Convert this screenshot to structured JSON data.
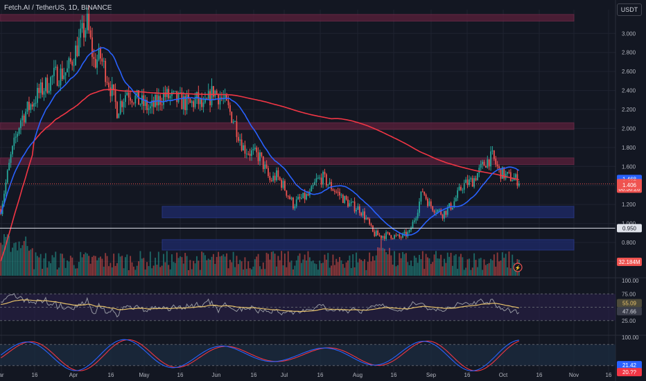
{
  "header": {
    "title": "Fetch.AI / TetherUS, 1D, BINANCE",
    "currency": "USDT"
  },
  "colors": {
    "background": "#131722",
    "up": "#26a69a",
    "down": "#ef5350",
    "ma_fast": "#2962ff",
    "ma_slow": "#f23645",
    "zone_supply": "#5b1f3a",
    "zone_demand": "#1e2a6b",
    "rsi_line": "#9598a1",
    "rsi_ma": "#e7c26a",
    "stoch_k": "#2962ff",
    "stoch_d": "#f23645"
  },
  "chart_data": [
    {
      "type": "candlestick",
      "title": "Fetch.AI / TetherUS, 1D, BINANCE",
      "ylim": [
        0.45,
        3.25
      ],
      "y_ticks": [
        "3.000",
        "2.800",
        "2.600",
        "2.400",
        "2.200",
        "2.000",
        "1.800",
        "1.600",
        "1.400",
        "1.200",
        "1.000",
        "0.800",
        "0.600"
      ],
      "x_ticks": [
        "ar",
        "16",
        "Apr",
        "16",
        "May",
        "16",
        "Jun",
        "16",
        "Jul",
        "16",
        "Aug",
        "16",
        "Sep",
        "16",
        "Oct",
        "16",
        "Nov",
        "16"
      ],
      "close_path": [
        [
          0,
          1.15
        ],
        [
          6,
          1.7
        ],
        [
          12,
          2.1
        ],
        [
          22,
          2.35
        ],
        [
          32,
          2.55
        ],
        [
          40,
          2.6
        ],
        [
          48,
          2.95
        ],
        [
          52,
          3.1
        ],
        [
          56,
          2.7
        ],
        [
          60,
          2.75
        ],
        [
          64,
          2.55
        ],
        [
          70,
          2.2
        ],
        [
          76,
          2.4
        ],
        [
          82,
          2.3
        ],
        [
          90,
          2.2
        ],
        [
          98,
          2.35
        ],
        [
          106,
          2.3
        ],
        [
          114,
          2.25
        ],
        [
          118,
          2.3
        ],
        [
          122,
          2.2
        ],
        [
          128,
          2.4
        ],
        [
          134,
          2.3
        ],
        [
          140,
          2.1
        ],
        [
          146,
          1.8
        ],
        [
          150,
          1.75
        ],
        [
          156,
          1.7
        ],
        [
          162,
          1.45
        ],
        [
          166,
          1.5
        ],
        [
          170,
          1.4
        ],
        [
          176,
          1.2
        ],
        [
          180,
          1.25
        ],
        [
          186,
          1.3
        ],
        [
          190,
          1.45
        ],
        [
          194,
          1.48
        ],
        [
          198,
          1.4
        ],
        [
          204,
          1.3
        ],
        [
          210,
          1.2
        ],
        [
          216,
          1.15
        ],
        [
          220,
          1.05
        ],
        [
          224,
          0.9
        ],
        [
          228,
          0.87
        ],
        [
          234,
          0.88
        ],
        [
          240,
          0.85
        ],
        [
          246,
          0.9
        ],
        [
          250,
          1.1
        ],
        [
          254,
          1.35
        ],
        [
          258,
          1.2
        ],
        [
          262,
          1.15
        ],
        [
          266,
          1.1
        ],
        [
          272,
          1.2
        ],
        [
          278,
          1.4
        ],
        [
          284,
          1.45
        ],
        [
          288,
          1.55
        ],
        [
          292,
          1.65
        ],
        [
          296,
          1.7
        ],
        [
          300,
          1.55
        ],
        [
          304,
          1.5
        ],
        [
          308,
          1.48
        ],
        [
          312,
          1.45
        ]
      ],
      "total_bars": 313,
      "markers": {
        "upper": "1.468",
        "last": "1.417",
        "countdown": "08:30:28",
        "lower": "1.406",
        "level": "0.950",
        "volume": "32.184M"
      },
      "horizontal_level": 0.95,
      "zones": [
        {
          "y1": 3.13,
          "y2": 3.2,
          "kind": "supply"
        },
        {
          "y1": 1.99,
          "y2": 2.06,
          "kind": "supply"
        },
        {
          "y1": 1.62,
          "y2": 1.69,
          "kind": "supply"
        },
        {
          "y1": 1.06,
          "y2": 1.18,
          "kind": "demand"
        },
        {
          "y1": 0.72,
          "y2": 0.83,
          "kind": "demand"
        }
      ]
    },
    {
      "type": "line",
      "title": "",
      "y_ticks": [
        "100.00",
        "75.00",
        "25.00"
      ],
      "ylim": [
        0,
        100
      ],
      "marker_a": "55.09",
      "marker_b": "47.66"
    },
    {
      "type": "line",
      "title": "",
      "y_ticks": [
        "100.00"
      ],
      "ylim": [
        0,
        100
      ],
      "marker_a": "21.42",
      "marker_b": "20.??"
    }
  ]
}
